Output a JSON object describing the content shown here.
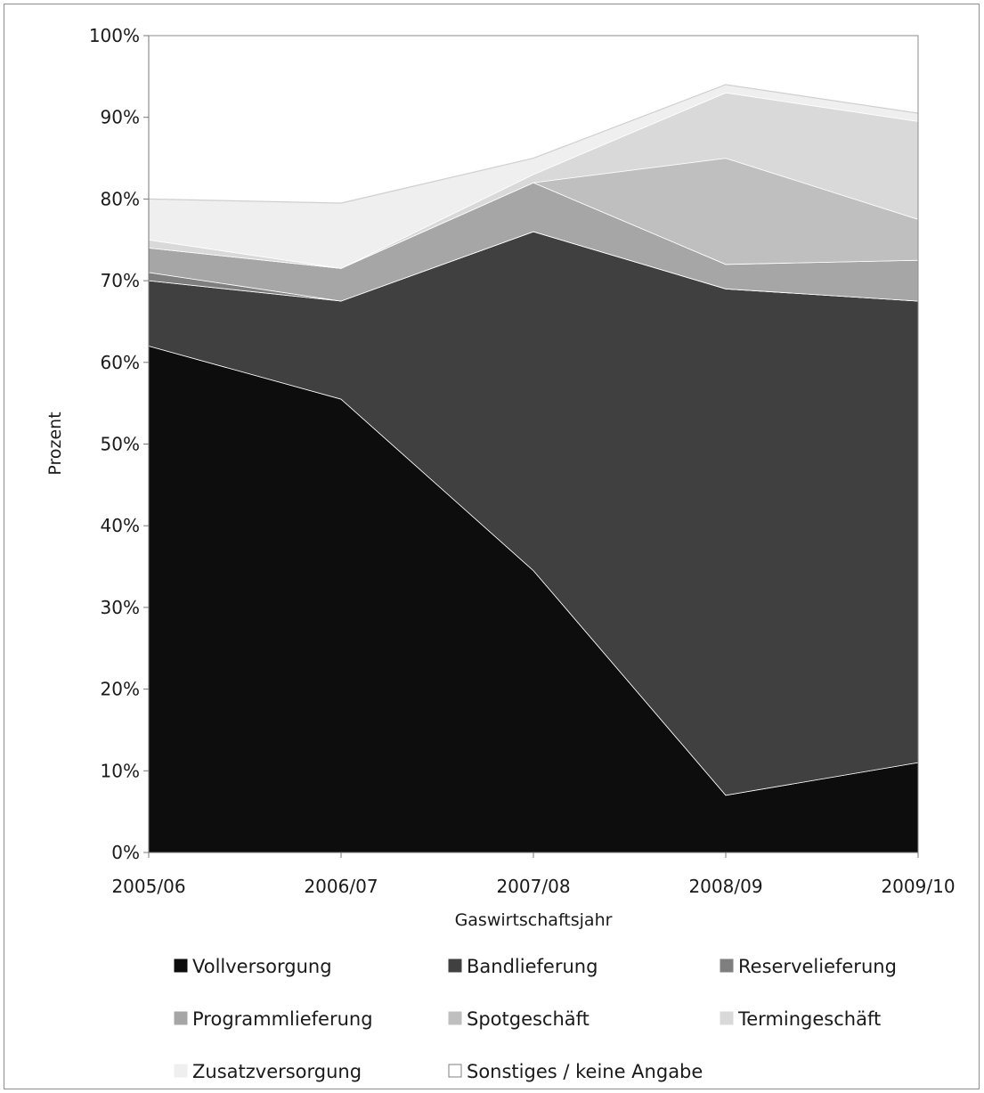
{
  "chart_data": {
    "type": "area",
    "stacked": true,
    "title": "",
    "xlabel": "Gaswirtschaftsjahr",
    "ylabel": "Prozent",
    "ylim": [
      0,
      100
    ],
    "y_ticks": [
      "0%",
      "10%",
      "20%",
      "30%",
      "40%",
      "50%",
      "60%",
      "70%",
      "80%",
      "90%",
      "100%"
    ],
    "categories": [
      "2005/06",
      "2006/07",
      "2007/08",
      "2008/09",
      "2009/10"
    ],
    "grid": false,
    "legend_position": "bottom",
    "series": [
      {
        "name": "Vollversorgung",
        "color": "#0d0d0d",
        "values": [
          62.0,
          55.5,
          34.5,
          7.0,
          11.0
        ]
      },
      {
        "name": "Bandlieferung",
        "color": "#404040",
        "values": [
          8.0,
          12.0,
          41.5,
          62.0,
          56.5
        ]
      },
      {
        "name": "Reservelieferung",
        "color": "#7f7f7f",
        "values": [
          1.0,
          0.0,
          0.0,
          0.0,
          0.0
        ]
      },
      {
        "name": "Programmlieferung",
        "color": "#a6a6a6",
        "values": [
          3.0,
          4.0,
          6.0,
          3.0,
          5.0
        ]
      },
      {
        "name": "Spotgeschäft",
        "color": "#bfbfbf",
        "values": [
          0.0,
          0.0,
          0.0,
          13.0,
          5.0
        ]
      },
      {
        "name": "Termingeschäft",
        "color": "#d9d9d9",
        "values": [
          1.0,
          0.0,
          1.0,
          8.0,
          12.0
        ]
      },
      {
        "name": "Zusatzversorgung",
        "color": "#efefef",
        "values": [
          5.0,
          8.0,
          2.0,
          1.0,
          1.0
        ]
      },
      {
        "name": "Sonstiges / keine Angabe",
        "color": "#ffffff",
        "values": [
          20.0,
          20.5,
          15.0,
          6.0,
          9.0
        ]
      }
    ]
  }
}
